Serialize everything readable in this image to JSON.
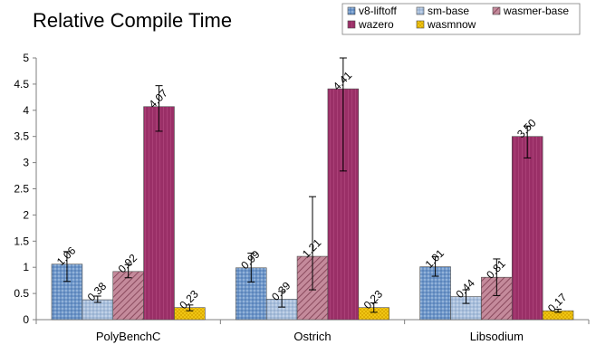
{
  "chart_data": {
    "type": "bar",
    "title": "Relative Compile Time",
    "categories": [
      "PolyBenchC",
      "Ostrich",
      "Libsodium"
    ],
    "ylim": [
      0,
      5
    ],
    "yticks": [
      "0",
      "0.5",
      "1",
      "1.5",
      "2",
      "2.5",
      "3",
      "3.5",
      "4",
      "4.5",
      "5"
    ],
    "ytick_values": [
      0,
      0.5,
      1,
      1.5,
      2,
      2.5,
      3,
      3.5,
      4,
      4.5,
      5
    ],
    "grid": false,
    "legend_position": "top-right",
    "series": [
      {
        "name": "v8-liftoff",
        "color": "#6f97c9",
        "pattern": "dots",
        "values": [
          1.06,
          0.99,
          1.01
        ],
        "labels": [
          "1.06",
          "0.99",
          "1.01"
        ],
        "err_low": [
          0.73,
          0.72,
          0.83
        ],
        "err_high": [
          1.3,
          1.27,
          1.2
        ]
      },
      {
        "name": "sm-base",
        "color": "#9fb8d6",
        "pattern": "dots",
        "values": [
          0.38,
          0.39,
          0.44
        ],
        "labels": [
          "0.38",
          "0.39",
          "0.44"
        ],
        "err_low": [
          0.33,
          0.24,
          0.31
        ],
        "err_high": [
          0.45,
          0.54,
          0.57
        ]
      },
      {
        "name": "wasmer-base",
        "color": "#b06a80",
        "pattern": "hatch",
        "values": [
          0.92,
          1.21,
          0.81
        ],
        "labels": [
          "0.92",
          "1.21",
          "0.81"
        ],
        "err_low": [
          0.8,
          0.57,
          0.46
        ],
        "err_high": [
          1.05,
          2.35,
          1.16
        ]
      },
      {
        "name": "wazero",
        "color": "#9a2f67",
        "pattern": "lines",
        "values": [
          4.07,
          4.41,
          3.5
        ],
        "labels": [
          "4.07",
          "4.41",
          "3.50"
        ],
        "err_low": [
          3.6,
          2.84,
          3.09
        ],
        "err_high": [
          4.47,
          5.0,
          3.7
        ]
      },
      {
        "name": "wasmnow",
        "color": "#f2c400",
        "pattern": "crosshatch",
        "values": [
          0.23,
          0.23,
          0.17
        ],
        "labels": [
          "0.23",
          "0.23",
          "0.17"
        ],
        "err_low": [
          0.17,
          0.14,
          0.14
        ],
        "err_high": [
          0.28,
          0.32,
          0.2
        ]
      }
    ]
  }
}
